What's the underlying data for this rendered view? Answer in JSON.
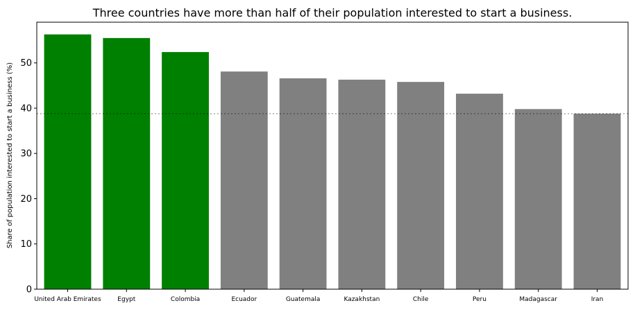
{
  "chart_data": {
    "type": "bar",
    "title": "Three countries have more than half of their population interested to start a business.",
    "xlabel": "",
    "ylabel": "Share of population interested to start a business (%)",
    "categories": [
      "United Arab Emirates",
      "Egypt",
      "Colombia",
      "Ecuador",
      "Guatemala",
      "Kazakhstan",
      "Chile",
      "Peru",
      "Madagascar",
      "Iran"
    ],
    "values": [
      56.3,
      55.5,
      52.4,
      48.1,
      46.6,
      46.3,
      45.8,
      43.2,
      39.8,
      38.8
    ],
    "ylim": [
      0,
      59
    ],
    "yticks": [
      0,
      10,
      20,
      30,
      40,
      50
    ],
    "reference_line": {
      "value": 38.8,
      "style": "dotted"
    },
    "grid": false,
    "colors": {
      "highlight": "#008000",
      "default": "#808080",
      "reference_line": "#999999"
    },
    "highlight_count": 3
  }
}
